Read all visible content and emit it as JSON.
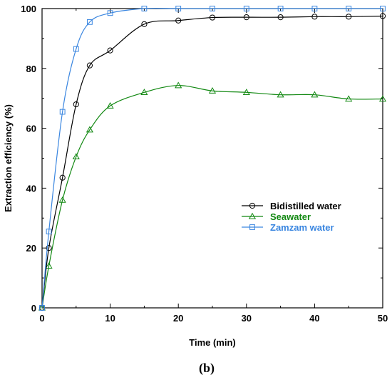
{
  "panel_label": "(b)",
  "chart_data": {
    "type": "line",
    "xlabel": "Time (min)",
    "ylabel": "Extraction efficiency (%)",
    "xlim": [
      0,
      50
    ],
    "ylim": [
      0,
      100
    ],
    "x_ticks": [
      0,
      10,
      20,
      30,
      40,
      50
    ],
    "y_ticks": [
      0,
      20,
      40,
      60,
      80,
      100
    ],
    "grid": false,
    "legend_position": "center-right",
    "series": [
      {
        "name": "Bidistilled water",
        "color": "#000000",
        "marker": "circle",
        "x": [
          0,
          1,
          3,
          5,
          7,
          10,
          15,
          20,
          25,
          30,
          35,
          40,
          45,
          50
        ],
        "y": [
          0,
          20,
          43.5,
          68,
          81,
          86,
          94.8,
          96,
          97,
          97.1,
          97.1,
          97.3,
          97.3,
          97.5
        ]
      },
      {
        "name": "Seawater",
        "color": "#118811",
        "marker": "triangle",
        "x": [
          0,
          1,
          3,
          5,
          7,
          10,
          15,
          20,
          25,
          30,
          35,
          40,
          45,
          50
        ],
        "y": [
          0,
          14,
          36,
          50.5,
          59.5,
          67.5,
          72,
          74.3,
          72.5,
          72,
          71.2,
          71.2,
          69.8,
          69.8
        ]
      },
      {
        "name": "Zamzam water",
        "color": "#3a86e0",
        "marker": "square",
        "x": [
          0,
          1,
          3,
          5,
          7,
          10,
          15,
          20,
          25,
          30,
          35,
          40,
          45,
          50
        ],
        "y": [
          0,
          25.5,
          65.5,
          86.5,
          95.5,
          98.5,
          100,
          100,
          100,
          100,
          100,
          100,
          100,
          100
        ]
      }
    ]
  }
}
